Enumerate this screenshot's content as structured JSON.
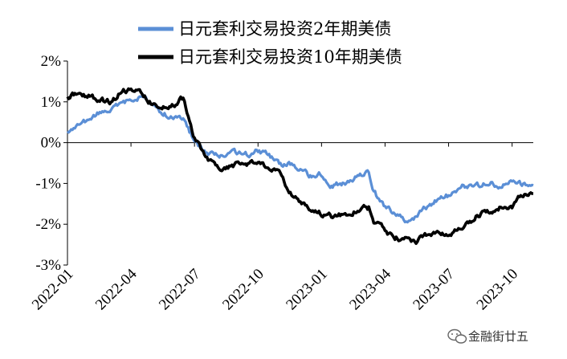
{
  "watermark": {
    "text": "金融街廿五"
  },
  "chart_data": {
    "type": "line",
    "x_tick_labels": [
      "2022-01",
      "2022-04",
      "2022-07",
      "2022-10",
      "2023-01",
      "2023-04",
      "2023-07",
      "2023-10"
    ],
    "x_range": [
      "2022-01",
      "2023-11"
    ],
    "ylim": [
      -3,
      2
    ],
    "y_ticks": [
      2,
      1,
      0,
      -1,
      -2,
      -3
    ],
    "y_tick_labels": [
      "2%",
      "1%",
      "0%",
      "-1%",
      "-2%",
      "-3%"
    ],
    "grid": false,
    "legend_position": "top",
    "series": [
      {
        "name": "日元套利交易投资2年期美债",
        "color": "#5b8fd6",
        "x": [
          "2022-01",
          "2022-01-15",
          "2022-02",
          "2022-02-15",
          "2022-03",
          "2022-03-15",
          "2022-04",
          "2022-04-15",
          "2022-05",
          "2022-05-15",
          "2022-06",
          "2022-06-15",
          "2022-07",
          "2022-07-15",
          "2022-08",
          "2022-08-15",
          "2022-09",
          "2022-09-15",
          "2022-10",
          "2022-10-15",
          "2022-11",
          "2022-11-15",
          "2022-12",
          "2022-12-15",
          "2023-01",
          "2023-01-15",
          "2023-02",
          "2023-02-15",
          "2023-03",
          "2023-03-08",
          "2023-03-15",
          "2023-04",
          "2023-04-15",
          "2023-05",
          "2023-05-15",
          "2023-06",
          "2023-06-15",
          "2023-07",
          "2023-07-15",
          "2023-08",
          "2023-08-15",
          "2023-09",
          "2023-09-15",
          "2023-10",
          "2023-10-15",
          "2023-11"
        ],
        "values": [
          0.25,
          0.4,
          0.55,
          0.7,
          0.8,
          0.9,
          1.05,
          1.1,
          0.95,
          0.75,
          0.6,
          0.55,
          0.05,
          -0.2,
          -0.3,
          -0.3,
          -0.25,
          -0.3,
          -0.2,
          -0.3,
          -0.55,
          -0.5,
          -0.7,
          -0.8,
          -0.75,
          -1.05,
          -1.0,
          -0.9,
          -0.75,
          -0.7,
          -1.2,
          -1.6,
          -1.75,
          -1.9,
          -1.8,
          -1.55,
          -1.4,
          -1.3,
          -1.1,
          -1.05,
          -1.05,
          -1.0,
          -1.05,
          -0.95,
          -1.0,
          -1.05
        ]
      },
      {
        "name": "日元套利交易投资10年期美债",
        "color": "#000000",
        "x": [
          "2022-01",
          "2022-01-15",
          "2022-02",
          "2022-02-15",
          "2022-03",
          "2022-03-15",
          "2022-04",
          "2022-04-15",
          "2022-05",
          "2022-05-15",
          "2022-06",
          "2022-06-15",
          "2022-07",
          "2022-07-15",
          "2022-08",
          "2022-08-15",
          "2022-09",
          "2022-09-15",
          "2022-10",
          "2022-10-15",
          "2022-11",
          "2022-11-15",
          "2022-12",
          "2022-12-15",
          "2023-01",
          "2023-01-15",
          "2023-02",
          "2023-02-15",
          "2023-03",
          "2023-03-08",
          "2023-03-15",
          "2023-04",
          "2023-04-15",
          "2023-05",
          "2023-05-15",
          "2023-06",
          "2023-06-15",
          "2023-07",
          "2023-07-15",
          "2023-08",
          "2023-08-15",
          "2023-09",
          "2023-09-15",
          "2023-10",
          "2023-10-15",
          "2023-11"
        ],
        "values": [
          1.1,
          1.2,
          1.15,
          1.05,
          1.0,
          1.2,
          1.35,
          1.2,
          0.95,
          0.9,
          0.9,
          1.1,
          0.1,
          -0.3,
          -0.6,
          -0.6,
          -0.55,
          -0.5,
          -0.55,
          -0.6,
          -0.7,
          -1.2,
          -1.5,
          -1.65,
          -1.75,
          -1.8,
          -1.75,
          -1.7,
          -1.6,
          -1.6,
          -1.9,
          -2.15,
          -2.35,
          -2.35,
          -2.4,
          -2.25,
          -2.25,
          -2.2,
          -2.15,
          -1.95,
          -1.75,
          -1.7,
          -1.6,
          -1.55,
          -1.3,
          -1.25
        ]
      }
    ]
  }
}
